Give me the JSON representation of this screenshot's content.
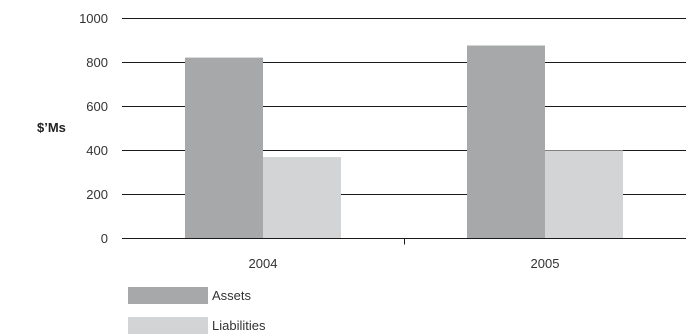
{
  "chart_data": {
    "type": "bar",
    "categories": [
      "2004",
      "2005"
    ],
    "series": [
      {
        "name": "Assets",
        "values": [
          820,
          875
        ],
        "color": "#a7a8aa"
      },
      {
        "name": "Liabilities",
        "values": [
          368,
          398
        ],
        "color": "#d3d4d5"
      }
    ],
    "ylabel": "$’Ms",
    "ylim": [
      0,
      1000
    ],
    "yticks": [
      0,
      200,
      400,
      600,
      800,
      1000
    ],
    "grid": true,
    "legend": "bottom-left"
  }
}
